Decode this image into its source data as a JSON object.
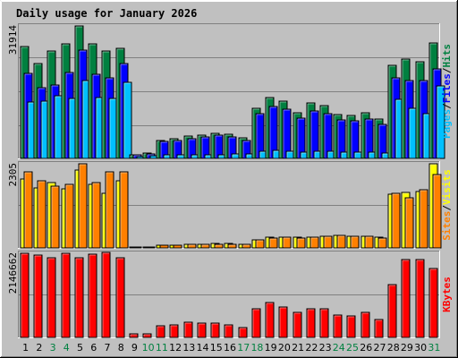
{
  "colors": {
    "hits": "#008040",
    "files": "#0000ff",
    "pages": "#00c0ff",
    "visits": "#ffff00",
    "sites": "#ff8000",
    "kbytes": "#ff0000",
    "title": "#0000ff",
    "weekend": "#008040",
    "weekday": "#000000",
    "slash": "#000000",
    "plot_bg": "#c0c0c0",
    "grid": "#808080"
  },
  "chart_data": {
    "type": "bar",
    "title": "Daily usage for January 2026",
    "categories": [
      "1",
      "2",
      "3",
      "4",
      "5",
      "6",
      "7",
      "8",
      "9",
      "10",
      "11",
      "12",
      "13",
      "14",
      "15",
      "16",
      "17",
      "18",
      "19",
      "20",
      "21",
      "22",
      "23",
      "24",
      "25",
      "26",
      "27",
      "28",
      "29",
      "30",
      "31"
    ],
    "weekend_days": [
      "3",
      "4",
      "10",
      "11",
      "17",
      "18",
      "24",
      "25",
      "31"
    ],
    "panels": [
      {
        "id": "requests",
        "ymax_label": "31914",
        "ylim": [
          0,
          31914
        ],
        "legend": [
          "Pages",
          "Files",
          "Hits"
        ],
        "series": [
          {
            "name": "Hits",
            "color_key": "hits",
            "values": [
              26900,
              22900,
              25900,
              27600,
              31900,
              27700,
              25800,
              26600,
              900,
              1200,
              4400,
              4700,
              5400,
              5700,
              6100,
              5800,
              5000,
              12000,
              14600,
              13800,
              11000,
              13300,
              12800,
              10600,
              10300,
              11100,
              9400,
              22400,
              24000,
              23300,
              27900
            ]
          },
          {
            "name": "Files",
            "color_key": "files",
            "values": [
              20500,
              17000,
              17700,
              20700,
              26100,
              20200,
              19400,
              22900,
              800,
              1100,
              4200,
              4400,
              4800,
              5100,
              5600,
              5200,
              4400,
              10700,
              12400,
              11800,
              9600,
              11400,
              10700,
              9200,
              9000,
              9400,
              8100,
              19500,
              18800,
              18800,
              21500
            ]
          },
          {
            "name": "Pages",
            "color_key": "pages",
            "values": [
              13600,
              13900,
              15000,
              14400,
              18800,
              14700,
              14400,
              18300,
              350,
              650,
              800,
              850,
              850,
              950,
              900,
              1000,
              1000,
              1800,
              1900,
              1700,
              1600,
              1700,
              1700,
              1500,
              1500,
              1600,
              1400,
              14200,
              12100,
              10800,
              17500
            ]
          }
        ]
      },
      {
        "id": "visitors",
        "ymax_label": "2305",
        "ylim": [
          0,
          2305
        ],
        "legend": [
          "Sites",
          "Visits"
        ],
        "series": [
          {
            "name": "Visits",
            "color_key": "visits",
            "values": [
              1880,
              1650,
              1780,
              1610,
              2140,
              1730,
              1500,
              1850,
              20,
              22,
              80,
              75,
              95,
              105,
              120,
              118,
              110,
              230,
              290,
              300,
              285,
              305,
              330,
              355,
              330,
              330,
              290,
              1470,
              1510,
              1550,
              2300
            ]
          },
          {
            "name": "Sites",
            "color_key": "sites",
            "values": [
              2080,
              1830,
              1700,
              1750,
              2300,
              1800,
              2080,
              2080,
              18,
              20,
              70,
              68,
              88,
              96,
              110,
              107,
              100,
              210,
              270,
              290,
              270,
              290,
              320,
              335,
              315,
              320,
              280,
              1490,
              1380,
              1600,
              2020
            ]
          }
        ]
      },
      {
        "id": "kbytes",
        "ymax_label": "2146662",
        "ylim": [
          0,
          2146662
        ],
        "legend": [
          "KBytes"
        ],
        "series": [
          {
            "name": "KBytes",
            "color_key": "kbytes",
            "values": [
              2140000,
              2100000,
              2040000,
              2140000,
              2040000,
              2120000,
              2180000,
              2040000,
              90000,
              100000,
              300000,
              310000,
              380000,
              370000,
              360000,
              320000,
              250000,
              730000,
              880000,
              770000,
              640000,
              740000,
              740000,
              580000,
              550000,
              640000,
              450000,
              1350000,
              1980000,
              1980000,
              1750000
            ]
          }
        ]
      }
    ],
    "grid": true
  }
}
